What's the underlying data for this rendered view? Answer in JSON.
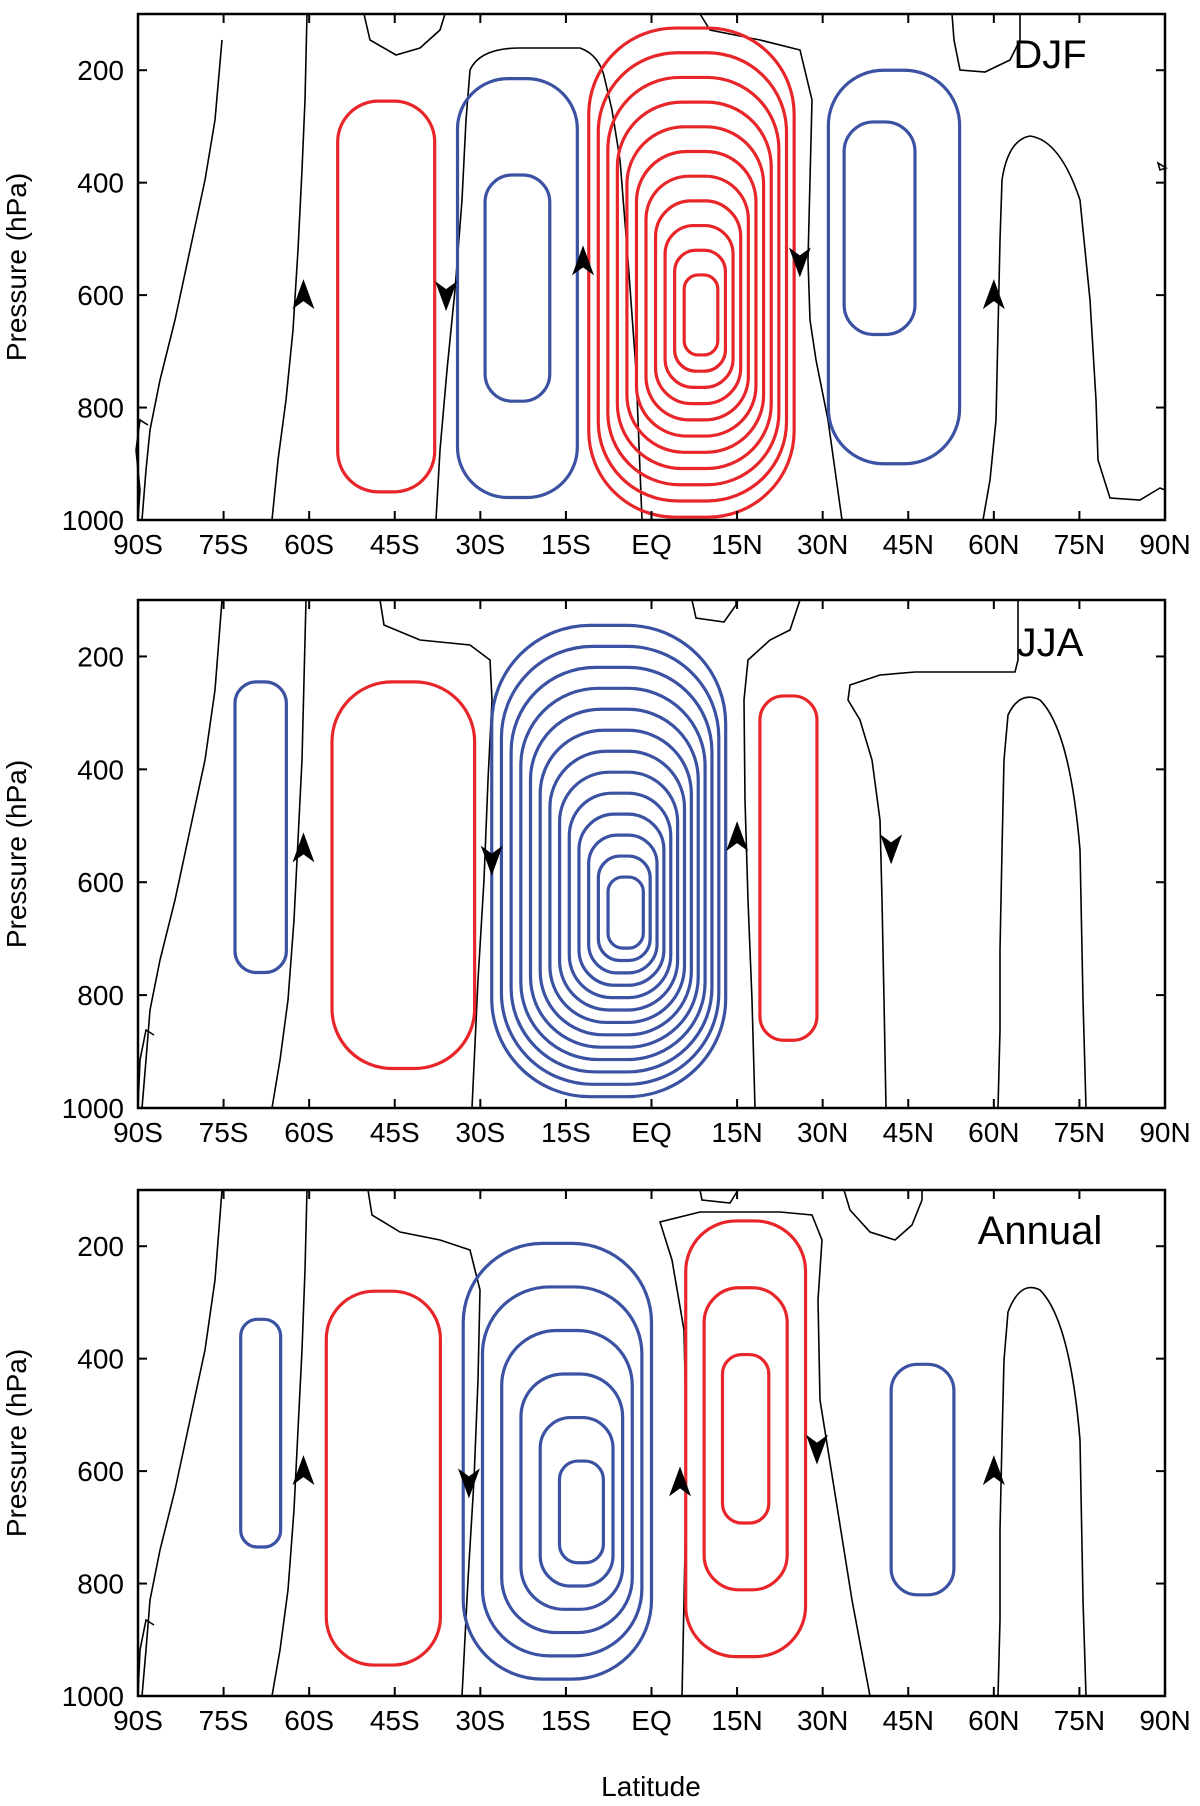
{
  "figure": {
    "ylabel": "Pressure (hPa)",
    "xlabel": "Latitude"
  },
  "colors": {
    "positive": "#e8262a",
    "negative": "#3b52a3",
    "zero": "#000000"
  },
  "chart_data": [
    {
      "type": "contour",
      "title": "DJF",
      "xlabel": "",
      "ylabel": "Pressure (hPa)",
      "xlim": [
        -90,
        90
      ],
      "ylim": [
        1000,
        100
      ],
      "x_ticks": [
        -90,
        -75,
        -60,
        -45,
        -30,
        -15,
        0,
        15,
        30,
        45,
        60,
        75,
        90
      ],
      "x_tick_labels": [
        "90S",
        "75S",
        "60S",
        "45S",
        "30S",
        "15S",
        "EQ",
        "15N",
        "30N",
        "45N",
        "60N",
        "75N",
        "90N"
      ],
      "y_ticks": [
        200,
        400,
        600,
        800,
        1000
      ],
      "y_tick_labels": [
        "200",
        "400",
        "600",
        "800",
        "1000"
      ],
      "cells": [
        {
          "sign": "positive",
          "lat_min": -55,
          "lat_max": -38,
          "p_top": 255,
          "p_bottom": 950,
          "levels": 1
        },
        {
          "sign": "negative",
          "lat_min": -34,
          "lat_max": -13,
          "p_top": 215,
          "p_bottom": 960,
          "levels": 2
        },
        {
          "sign": "positive",
          "lat_min": -11,
          "lat_max": 25,
          "p_top": 125,
          "p_bottom": 1000,
          "levels": 11,
          "center_lat": 9,
          "center_p": 650
        },
        {
          "sign": "negative",
          "lat_min": 31,
          "lat_max": 54,
          "p_top": 200,
          "p_bottom": 900,
          "levels": 2,
          "center_lat": 37,
          "center_p": 400
        }
      ],
      "arrows": [
        {
          "lat": -61,
          "p": 600,
          "direction": "up"
        },
        {
          "lat": -36,
          "p": 600,
          "direction": "down"
        },
        {
          "lat": -12,
          "p": 540,
          "direction": "up"
        },
        {
          "lat": 26,
          "p": 540,
          "direction": "down"
        },
        {
          "lat": 60,
          "p": 600,
          "direction": "up"
        }
      ]
    },
    {
      "type": "contour",
      "title": "JJA",
      "xlabel": "",
      "ylabel": "Pressure (hPa)",
      "xlim": [
        -90,
        90
      ],
      "ylim": [
        1000,
        100
      ],
      "x_ticks": [
        -90,
        -75,
        -60,
        -45,
        -30,
        -15,
        0,
        15,
        30,
        45,
        60,
        75,
        90
      ],
      "x_tick_labels": [
        "90S",
        "75S",
        "60S",
        "45S",
        "30S",
        "15S",
        "EQ",
        "15N",
        "30N",
        "45N",
        "60N",
        "75N",
        "90N"
      ],
      "y_ticks": [
        200,
        400,
        600,
        800,
        1000
      ],
      "y_tick_labels": [
        "200",
        "400",
        "600",
        "800",
        "1000"
      ],
      "cells": [
        {
          "sign": "negative",
          "lat_min": -73,
          "lat_max": -64,
          "p_top": 245,
          "p_bottom": 760,
          "levels": 1
        },
        {
          "sign": "positive",
          "lat_min": -56,
          "lat_max": -31,
          "p_top": 245,
          "p_bottom": 930,
          "levels": 1
        },
        {
          "sign": "negative",
          "lat_min": -28,
          "lat_max": 13,
          "p_top": 145,
          "p_bottom": 980,
          "levels": 13,
          "center_lat": -4,
          "center_p": 670
        },
        {
          "sign": "positive",
          "lat_min": 19,
          "lat_max": 29,
          "p_top": 270,
          "p_bottom": 880,
          "levels": 1
        }
      ],
      "arrows": [
        {
          "lat": -61,
          "p": 540,
          "direction": "up"
        },
        {
          "lat": -28,
          "p": 560,
          "direction": "down"
        },
        {
          "lat": 15,
          "p": 520,
          "direction": "up"
        },
        {
          "lat": 42,
          "p": 540,
          "direction": "down"
        }
      ]
    },
    {
      "type": "contour",
      "title": "Annual",
      "xlabel": "Latitude",
      "ylabel": "Pressure (hPa)",
      "xlim": [
        -90,
        90
      ],
      "ylim": [
        1000,
        100
      ],
      "x_ticks": [
        -90,
        -75,
        -60,
        -45,
        -30,
        -15,
        0,
        15,
        30,
        45,
        60,
        75,
        90
      ],
      "x_tick_labels": [
        "90S",
        "75S",
        "60S",
        "45S",
        "30S",
        "15S",
        "EQ",
        "15N",
        "30N",
        "45N",
        "60N",
        "75N",
        "90N"
      ],
      "y_ticks": [
        200,
        400,
        600,
        800,
        1000
      ],
      "y_tick_labels": [
        "200",
        "400",
        "600",
        "800",
        "1000"
      ],
      "cells": [
        {
          "sign": "negative",
          "lat_min": -72,
          "lat_max": -65,
          "p_top": 330,
          "p_bottom": 735,
          "levels": 1
        },
        {
          "sign": "positive",
          "lat_min": -57,
          "lat_max": -37,
          "p_top": 280,
          "p_bottom": 945,
          "levels": 1
        },
        {
          "sign": "negative",
          "lat_min": -33,
          "lat_max": 0,
          "p_top": 195,
          "p_bottom": 970,
          "levels": 6,
          "center_lat": -11,
          "center_p": 700
        },
        {
          "sign": "positive",
          "lat_min": 6,
          "lat_max": 27,
          "p_top": 155,
          "p_bottom": 930,
          "levels": 3
        },
        {
          "sign": "negative",
          "lat_min": 42,
          "lat_max": 53,
          "p_top": 410,
          "p_bottom": 820,
          "levels": 1
        }
      ],
      "arrows": [
        {
          "lat": -61,
          "p": 600,
          "direction": "up"
        },
        {
          "lat": -32,
          "p": 620,
          "direction": "down"
        },
        {
          "lat": 5,
          "p": 620,
          "direction": "up"
        },
        {
          "lat": 29,
          "p": 560,
          "direction": "down"
        },
        {
          "lat": 60,
          "p": 600,
          "direction": "up"
        }
      ]
    }
  ]
}
